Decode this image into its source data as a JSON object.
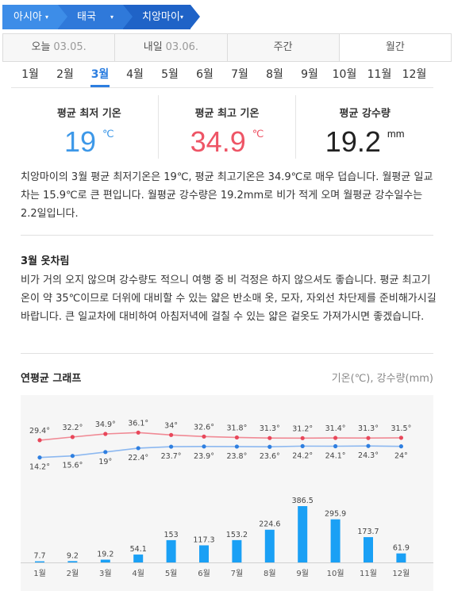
{
  "breadcrumb": {
    "items": [
      {
        "label": "아시아",
        "caret": "▾"
      },
      {
        "label": "태국",
        "caret": "▾"
      },
      {
        "label": "치앙마이",
        "caret": "▾"
      }
    ]
  },
  "day_tabs": [
    {
      "label": "오늘",
      "date": "03.05."
    },
    {
      "label": "내일",
      "date": "03.06."
    },
    {
      "label": "주간",
      "date": ""
    },
    {
      "label": "월간",
      "date": ""
    }
  ],
  "months": [
    "1월",
    "2월",
    "3월",
    "4월",
    "5월",
    "6월",
    "7월",
    "8월",
    "9월",
    "10월",
    "11월",
    "12월"
  ],
  "selected_month": "3월",
  "stats": {
    "min": {
      "label": "평균 최저 기온",
      "value": "19",
      "unit": "℃"
    },
    "max": {
      "label": "평균 최고 기온",
      "value": "34.9",
      "unit": "℃"
    },
    "rain": {
      "label": "평균 강수량",
      "value": "19.2",
      "unit": "mm"
    }
  },
  "summary": "치앙마이의 3월 평균 최저기온은 19℃, 평균 최고기온은 34.9℃로 매우 덥습니다. 월평균 일교차는 15.9℃로 큰 편입니다. 월평균 강수량은 19.2mm로 비가 적게 오며 월평균 강수일수는 2.2일입니다.",
  "clothes": {
    "title": "3월 옷차림",
    "text": "비가 거의 오지 않으며 강수량도 적으니 여행 중 비 걱정은 하지 않으셔도 좋습니다. 평균 최고기온이 약 35℃이므로 더위에 대비할 수 있는 얇은 반소매 옷, 모자, 자외선 차단제를 준비해가시길 바랍니다. 큰 일교차에 대비하여 아침저녁에 걸칠 수 있는 얇은 겉옷도 가져가시면 좋겠습니다."
  },
  "graph": {
    "title": "연평균 그래프",
    "unit_label": "기온(℃), 강수량(mm)"
  },
  "colors": {
    "max_line": "#f08a95",
    "max_point": "#e8475a",
    "min_line": "#8cb8f0",
    "min_point": "#2f7fe0",
    "bar": "#1aa0f5",
    "active_tab": "#2c7ee0"
  },
  "chart_data": {
    "type": "bar+line",
    "categories": [
      "1월",
      "2월",
      "3월",
      "4월",
      "5월",
      "6월",
      "7월",
      "8월",
      "9월",
      "10월",
      "11월",
      "12월"
    ],
    "series": [
      {
        "values": [
          29.4,
          32.2,
          34.9,
          36.1,
          34,
          32.6,
          31.8,
          31.3,
          31.2,
          31.4,
          31.3,
          31.5
        ],
        "labels": [
          "29.4°",
          "32.2°",
          "34.9°",
          "36.1°",
          "34°",
          "32.6°",
          "31.8°",
          "31.3°",
          "31.2°",
          "31.4°",
          "31.3°",
          "31.5°"
        ]
      },
      {
        "values": [
          14.2,
          15.6,
          19,
          22.4,
          23.7,
          23.9,
          23.8,
          23.6,
          24.2,
          24.1,
          24.3,
          24
        ],
        "labels": [
          "14.2°",
          "15.6°",
          "19°",
          "22.4°",
          "23.7°",
          "23.9°",
          "23.8°",
          "23.6°",
          "24.2°",
          "24.1°",
          "24.3°",
          "24°"
        ]
      },
      {
        "values": [
          7.7,
          9.2,
          19.2,
          54.1,
          153,
          117.3,
          153.2,
          224.6,
          386.5,
          295.9,
          173.7,
          61.9
        ],
        "labels": [
          "7.7",
          "9.2",
          "19.2",
          "54.1",
          "153",
          "117.3",
          "153.2",
          "224.6",
          "386.5",
          "295.9",
          "173.7",
          "61.9"
        ]
      }
    ]
  }
}
